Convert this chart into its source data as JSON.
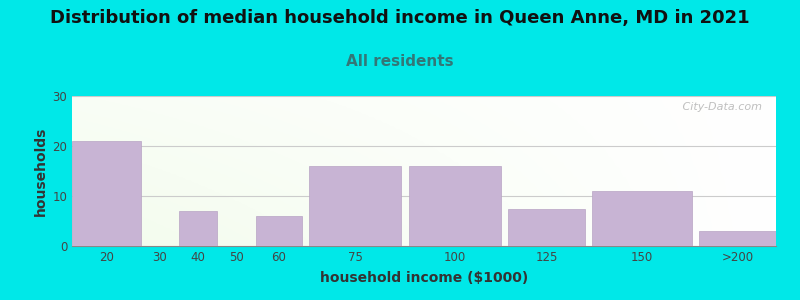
{
  "title": "Distribution of median household income in Queen Anne, MD in 2021",
  "subtitle": "All residents",
  "xlabel": "household income ($1000)",
  "ylabel": "households",
  "categories": [
    "20",
    "30",
    "40",
    "50",
    "60",
    "75",
    "100",
    "125",
    "150",
    ">200"
  ],
  "values": [
    21,
    0,
    7,
    0,
    6,
    16,
    16,
    7.5,
    11,
    3
  ],
  "bar_lefts": [
    0,
    10,
    14,
    20,
    24,
    31,
    44,
    57,
    68,
    82
  ],
  "bar_widths": [
    9,
    3,
    5,
    3,
    6,
    12,
    12,
    10,
    13,
    10
  ],
  "tick_positions": [
    4.5,
    11.5,
    16.5,
    21.5,
    27,
    37,
    50,
    62,
    74.5,
    87
  ],
  "ylim": [
    0,
    30
  ],
  "yticks": [
    0,
    10,
    20,
    30
  ],
  "bar_color": "#c8b4d4",
  "bar_edge_color": "#b8a4c4",
  "background_color": "#00e8e8",
  "title_fontsize": 13,
  "subtitle_fontsize": 11,
  "axis_label_fontsize": 10,
  "tick_fontsize": 8.5,
  "title_color": "#111111",
  "subtitle_color": "#337777",
  "watermark": " City-Data.com"
}
